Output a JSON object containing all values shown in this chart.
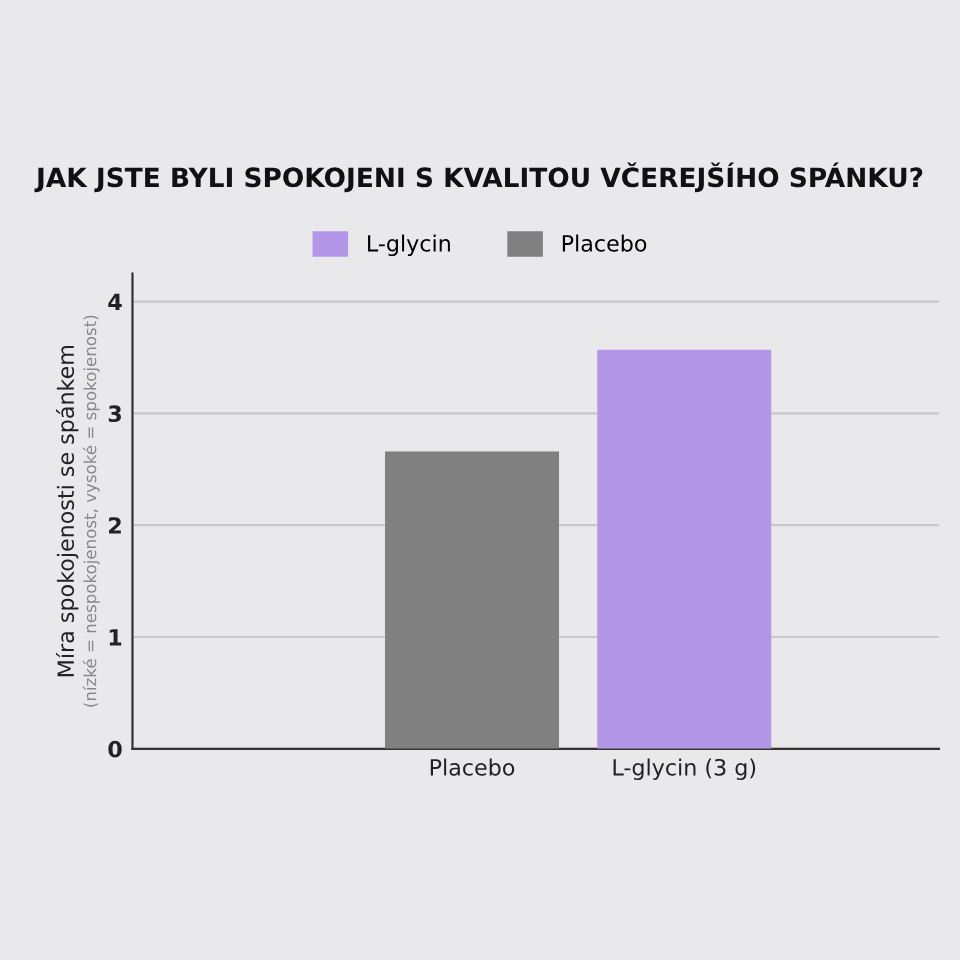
{
  "chart_data": {
    "type": "bar",
    "title": "JAK JSTE BYLI SPOKOJENI S KVALITOU VČEREJŠÍHO SPÁNKU?",
    "ylabel": "Míra spokojenosti se spánkem\n(nízké = nespokojenost, vysoké = spokojenost)",
    "categories": [
      "Placebo",
      "L-glycin (3 g)"
    ],
    "series": [
      {
        "name": "L-glycin",
        "color": "#b496e8",
        "values": [
          null,
          3.57
        ]
      },
      {
        "name": "Placebo",
        "color": "#808080",
        "values": [
          2.66,
          null
        ]
      }
    ],
    "ylim": [
      0,
      4.25
    ],
    "yticks": [
      0,
      1,
      2,
      3,
      4
    ],
    "grid": "y",
    "legend": "top"
  }
}
